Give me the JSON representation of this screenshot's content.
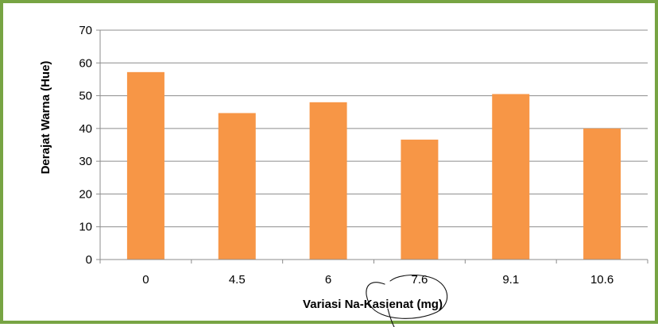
{
  "chart_data": {
    "type": "bar",
    "categories": [
      "0",
      "4.5",
      "6",
      "7.6",
      "9.1",
      "10.6"
    ],
    "values": [
      57.2,
      44.7,
      48.0,
      36.6,
      50.5,
      40.0
    ],
    "title": "",
    "xlabel": "Variasi Na-Kasienat (mg)",
    "ylabel": "Derajat Warna (Hue)",
    "ylim": [
      0,
      70
    ],
    "yticks": [
      "0",
      "10",
      "20",
      "30",
      "40",
      "50",
      "60",
      "70"
    ],
    "grid": "horizontal",
    "legend": "none",
    "bar_color": "#f79646",
    "frame_color": "#77a443",
    "annotation": "handwritten circle around x-axis label"
  }
}
